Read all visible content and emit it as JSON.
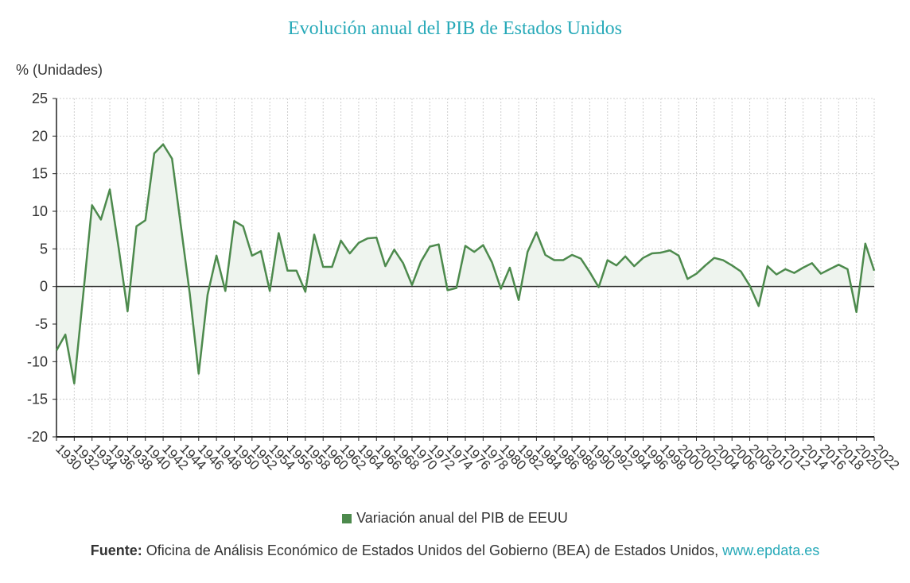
{
  "colors": {
    "title": "#26a9b8",
    "line": "#4d8a4d",
    "area": "#eef4ee",
    "grid": "#cfcfcf",
    "axis": "#222222",
    "link": "#26a9b8"
  },
  "header": {
    "title": "Evolución anual del PIB de Estados Unidos"
  },
  "axis": {
    "y_unit": "% (Unidades)"
  },
  "legend": {
    "label": "Variación anual del PIB de EEUU"
  },
  "source": {
    "label": "Fuente:",
    "text": " Oficina de Análisis Económico de Estados Unidos del Gobierno (BEA) de Estados Unidos, ",
    "link": "www.epdata.es"
  },
  "chart_data": {
    "type": "area",
    "title": "Evolución anual del PIB de Estados Unidos",
    "ylabel": "% (Unidades)",
    "ylim": [
      -20,
      25
    ],
    "yticks": [
      25,
      20,
      15,
      10,
      5,
      0,
      -5,
      -10,
      -15,
      -20
    ],
    "xlim": [
      1930,
      2022
    ],
    "xticks": [
      "1930",
      "1932",
      "1934",
      "1936",
      "1938",
      "1940",
      "1942",
      "1944",
      "1946",
      "1948",
      "1950",
      "1952",
      "1954",
      "1956",
      "1958",
      "1960",
      "1962",
      "1964",
      "1966",
      "1968",
      "1970",
      "1972",
      "1974",
      "1976",
      "1978",
      "1980",
      "1982",
      "1984",
      "1986",
      "1988",
      "1990",
      "1992",
      "1994",
      "1996",
      "1998",
      "2000",
      "2002",
      "2004",
      "2006",
      "2008",
      "2010",
      "2012",
      "2014",
      "2016",
      "2018",
      "2020",
      "2022"
    ],
    "grid": true,
    "legend_position": "bottom",
    "series": [
      {
        "name": "Variación anual del PIB de EEUU",
        "x": [
          1930,
          1931,
          1932,
          1933,
          1934,
          1935,
          1936,
          1937,
          1938,
          1939,
          1940,
          1941,
          1942,
          1943,
          1944,
          1945,
          1946,
          1947,
          1948,
          1949,
          1950,
          1951,
          1952,
          1953,
          1954,
          1955,
          1956,
          1957,
          1958,
          1959,
          1960,
          1961,
          1962,
          1963,
          1964,
          1965,
          1966,
          1967,
          1968,
          1969,
          1970,
          1971,
          1972,
          1973,
          1974,
          1975,
          1976,
          1977,
          1978,
          1979,
          1980,
          1981,
          1982,
          1983,
          1984,
          1985,
          1986,
          1987,
          1988,
          1989,
          1990,
          1991,
          1992,
          1993,
          1994,
          1995,
          1996,
          1997,
          1998,
          1999,
          2000,
          2001,
          2002,
          2003,
          2004,
          2005,
          2006,
          2007,
          2008,
          2009,
          2010,
          2011,
          2012,
          2013,
          2014,
          2015,
          2016,
          2017,
          2018,
          2019,
          2020,
          2021,
          2022
        ],
        "values": [
          -8.5,
          -6.4,
          -12.9,
          -1.2,
          10.8,
          8.9,
          12.9,
          5.1,
          -3.3,
          8.0,
          8.8,
          17.7,
          18.9,
          17.0,
          8.0,
          -1.0,
          -11.6,
          -1.1,
          4.1,
          -0.6,
          8.7,
          8.0,
          4.1,
          4.7,
          -0.6,
          7.1,
          2.1,
          2.1,
          -0.7,
          6.9,
          2.6,
          2.6,
          6.1,
          4.4,
          5.8,
          6.4,
          6.5,
          2.7,
          4.9,
          3.1,
          0.2,
          3.3,
          5.3,
          5.6,
          -0.5,
          -0.2,
          5.4,
          4.6,
          5.5,
          3.2,
          -0.3,
          2.5,
          -1.8,
          4.6,
          7.2,
          4.2,
          3.5,
          3.5,
          4.2,
          3.7,
          1.9,
          -0.1,
          3.5,
          2.8,
          4.0,
          2.7,
          3.8,
          4.4,
          4.5,
          4.8,
          4.1,
          1.0,
          1.7,
          2.8,
          3.8,
          3.5,
          2.8,
          2.0,
          0.1,
          -2.6,
          2.7,
          1.6,
          2.3,
          1.8,
          2.5,
          3.1,
          1.7,
          2.3,
          2.9,
          2.3,
          -3.4,
          5.7,
          2.1
        ]
      }
    ]
  }
}
